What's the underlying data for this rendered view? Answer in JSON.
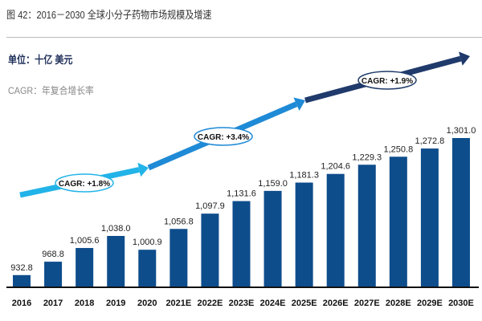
{
  "header": {
    "title": "图 42：2016－2030 全球小分子药物市场规模及增速",
    "unit": "单位：十亿 美元",
    "cagr_note": "CAGR：年复合增长率"
  },
  "chart_data": {
    "type": "bar",
    "title": "图 42：2016－2030 全球小分子药物市场规模及增速",
    "categories": [
      "2016",
      "2017",
      "2018",
      "2019",
      "2020",
      "2021E",
      "2022E",
      "2023E",
      "2024E",
      "2025E",
      "2026E",
      "2027E",
      "2028E",
      "2029E",
      "2030E"
    ],
    "values": [
      932.8,
      968.8,
      1005.6,
      1038.0,
      1000.9,
      1056.8,
      1097.9,
      1131.6,
      1159.0,
      1181.3,
      1204.6,
      1229.3,
      1250.8,
      1272.8,
      1301.0
    ],
    "labels": [
      "932.8",
      "968.8",
      "1,005.6",
      "1,038.0",
      "1,000.9",
      "1,056.8",
      "1,097.9",
      "1,131.6",
      "1,159.0",
      "1,181.3",
      "1,204.6",
      "1,229.3",
      "1,250.8",
      "1,272.8",
      "1,301.0"
    ],
    "bar_color": "#0e4d8c",
    "ylim": [
      900,
      1320
    ],
    "grid": false,
    "annotations": [
      {
        "text": "CAGR: +1.8%",
        "from": "2016",
        "to": "2020",
        "color": "#22b3e8"
      },
      {
        "text": "CAGR: +3.4%",
        "from": "2020",
        "to": "2025E",
        "color": "#1f8ad6"
      },
      {
        "text": "CAGR: +1.9%",
        "from": "2025E",
        "to": "2030E",
        "color": "#1f3a6b"
      }
    ]
  }
}
